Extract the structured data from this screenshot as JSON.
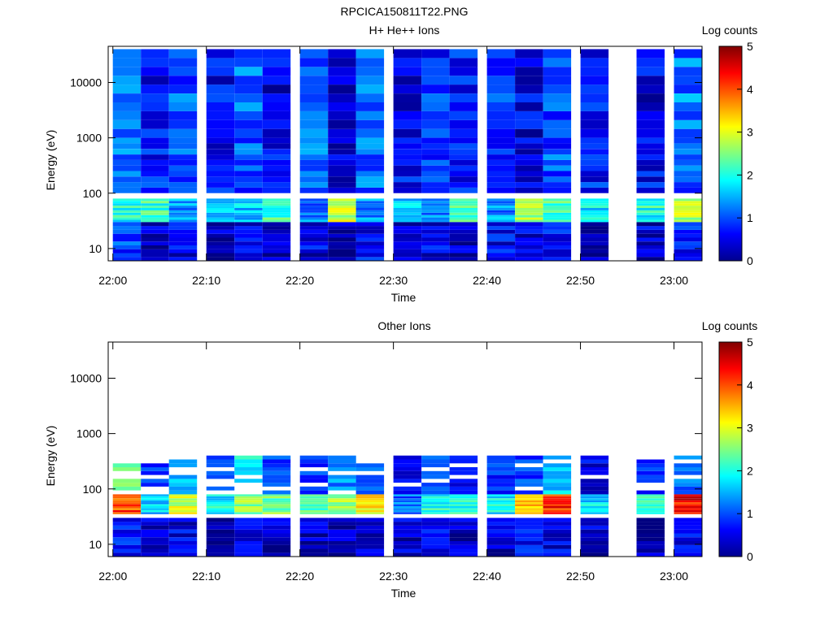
{
  "figure_title": "RPCICA150811T22.PNG",
  "chart_data": [
    {
      "type": "heatmap",
      "title": "H+ He++ Ions",
      "xlabel": "Time",
      "ylabel": "Energy (eV)",
      "yscale": "log",
      "ylim": [
        6,
        45000
      ],
      "xlim": [
        "21:59:30",
        "23:03:00"
      ],
      "x_ticks": [
        "22:00",
        "22:10",
        "22:20",
        "22:30",
        "22:40",
        "22:50",
        "23:00"
      ],
      "y_ticks": [
        "10",
        "100",
        "1000",
        "10000"
      ],
      "colorbar": {
        "label": "Log counts",
        "range": [
          0,
          5
        ],
        "ticks": [
          "0",
          "1",
          "2",
          "3",
          "4",
          "5"
        ]
      },
      "time_columns": [
        "22:00",
        "22:03",
        "22:06",
        "22:10",
        "22:13",
        "22:16",
        "22:20",
        "22:23",
        "22:26",
        "22:30",
        "22:33",
        "22:36",
        "22:40",
        "22:43",
        "22:46",
        "22:50",
        "22:56",
        "23:00"
      ],
      "gaps": [
        "22:53"
      ],
      "energy_bands_eV": [
        {
          "band": "high (1000-40000)",
          "log_counts": [
            1.2,
            0.6,
            1.0,
            0.6,
            1.1,
            0.5,
            1.0,
            0.4,
            1.1,
            0.5,
            0.8,
            0.7,
            0.9,
            0.5,
            0.9,
            0.6,
            0.5,
            1.2
          ]
        },
        {
          "band": "mid (100-1000)",
          "log_counts": [
            1.1,
            0.7,
            1.0,
            0.6,
            1.0,
            0.6,
            1.1,
            0.5,
            1.1,
            0.6,
            0.9,
            0.7,
            0.9,
            0.5,
            1.0,
            0.7,
            0.6,
            1.1
          ]
        },
        {
          "band": "peak (30-80)",
          "log_counts": [
            2.0,
            2.1,
            1.4,
            1.8,
            1.6,
            2.2,
            1.2,
            2.8,
            1.3,
            1.7,
            1.2,
            2.1,
            1.3,
            2.6,
            2.2,
            1.8,
            2.0,
            2.8
          ]
        },
        {
          "band": "low (6-30)",
          "log_counts": [
            0.9,
            0.3,
            0.5,
            0.3,
            0.6,
            0.2,
            0.5,
            0.2,
            0.6,
            0.2,
            0.5,
            0.3,
            0.6,
            0.4,
            0.6,
            0.3,
            0.4,
            0.7
          ]
        }
      ],
      "legend": "colorbar right"
    },
    {
      "type": "heatmap",
      "title": "Other Ions",
      "xlabel": "Time",
      "ylabel": "Energy (eV)",
      "yscale": "log",
      "ylim": [
        6,
        45000
      ],
      "xlim": [
        "21:59:30",
        "23:03:00"
      ],
      "x_ticks": [
        "22:00",
        "22:10",
        "22:20",
        "22:30",
        "22:40",
        "22:50",
        "23:00"
      ],
      "y_ticks": [
        "10",
        "100",
        "1000",
        "10000"
      ],
      "colorbar": {
        "label": "Log counts",
        "range": [
          0,
          5
        ],
        "ticks": [
          "0",
          "1",
          "2",
          "3",
          "4",
          "5"
        ]
      },
      "time_columns": [
        "22:00",
        "22:03",
        "22:06",
        "22:10",
        "22:13",
        "22:16",
        "22:20",
        "22:23",
        "22:26",
        "22:30",
        "22:33",
        "22:36",
        "22:40",
        "22:43",
        "22:46",
        "22:50",
        "22:56",
        "23:00"
      ],
      "energy_bands_eV": [
        {
          "band": "peak (35-80)",
          "log_counts": [
            4.0,
            1.6,
            2.9,
            1.9,
            2.5,
            2.4,
            2.3,
            2.7,
            3.2,
            1.1,
            2.0,
            2.1,
            1.8,
            3.5,
            4.2,
            1.7,
            2.0,
            4.4
          ]
        },
        {
          "band": "upper tail (80-400)",
          "log_counts": [
            2.3,
            0.7,
            1.4,
            0.8,
            1.8,
            0.9,
            0.8,
            1.2,
            1.0,
            0.5,
            0.8,
            0.6,
            0.7,
            0.8,
            1.5,
            0.4,
            0.6,
            1.0
          ]
        },
        {
          "band": "low (6-30)",
          "log_counts": [
            0.8,
            0.3,
            0.5,
            0.0,
            0.6,
            0.3,
            0.4,
            0.2,
            0.3,
            0.4,
            0.5,
            0.3,
            0.4,
            0.6,
            0.5,
            0.3,
            0.2,
            0.6
          ]
        }
      ],
      "legend": "colorbar right"
    }
  ]
}
